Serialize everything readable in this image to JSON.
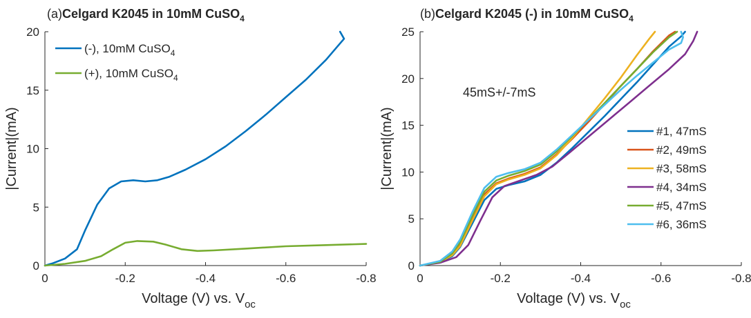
{
  "chart_data": [
    {
      "type": "line",
      "title_prefix": "(a)",
      "title": "Celgard K2045 in 10mM CuSO",
      "title_sub": "4",
      "xlabel": "Voltage (V) vs. V",
      "xlabel_sub": "oc",
      "ylabel": "|Current|(mA)",
      "xlim": [
        0,
        -0.8
      ],
      "ylim": [
        0,
        20
      ],
      "xticks": [
        0,
        -0.2,
        -0.4,
        -0.6,
        -0.8
      ],
      "xtick_labels": [
        "0",
        "-0.2",
        "-0.4",
        "-0.6",
        "-0.8"
      ],
      "yticks": [
        0,
        5,
        10,
        15,
        20
      ],
      "ytick_labels": [
        "0",
        "5",
        "10",
        "15",
        "20"
      ],
      "grid": false,
      "legend_position": "top-left",
      "series": [
        {
          "name": "(-), 10mM CuSO",
          "name_sub": "4",
          "color": "#0072BD",
          "x": [
            0,
            -0.02,
            -0.05,
            -0.08,
            -0.1,
            -0.13,
            -0.16,
            -0.19,
            -0.22,
            -0.25,
            -0.28,
            -0.31,
            -0.35,
            -0.4,
            -0.45,
            -0.5,
            -0.55,
            -0.6,
            -0.65,
            -0.7,
            -0.73,
            -0.745,
            -0.735
          ],
          "y": [
            0,
            0.2,
            0.6,
            1.4,
            3.0,
            5.2,
            6.6,
            7.2,
            7.3,
            7.2,
            7.3,
            7.6,
            8.2,
            9.1,
            10.2,
            11.5,
            12.9,
            14.4,
            15.9,
            17.6,
            18.8,
            19.4,
            20.0
          ]
        },
        {
          "name": "(+), 10mM CuSO",
          "name_sub": "4",
          "color": "#77AC30",
          "x": [
            0,
            -0.05,
            -0.1,
            -0.14,
            -0.17,
            -0.2,
            -0.23,
            -0.27,
            -0.3,
            -0.34,
            -0.38,
            -0.42,
            -0.5,
            -0.6,
            -0.7,
            -0.8
          ],
          "y": [
            0,
            0.15,
            0.4,
            0.8,
            1.4,
            1.95,
            2.1,
            2.05,
            1.8,
            1.4,
            1.25,
            1.3,
            1.45,
            1.65,
            1.75,
            1.85
          ]
        }
      ]
    },
    {
      "type": "line",
      "title_prefix": "(b)",
      "title": "Celgard K2045 (-) in 10mM CuSO",
      "title_sub": "4",
      "xlabel": "Voltage (V) vs. V",
      "xlabel_sub": "oc",
      "ylabel": "|Current|(mA)",
      "xlim": [
        0,
        -0.8
      ],
      "ylim": [
        0,
        25
      ],
      "xticks": [
        0,
        -0.2,
        -0.4,
        -0.6,
        -0.8
      ],
      "xtick_labels": [
        "0",
        "-0.2",
        "-0.4",
        "-0.6",
        "-0.8"
      ],
      "yticks": [
        0,
        5,
        10,
        15,
        20,
        25
      ],
      "ytick_labels": [
        "0",
        "5",
        "10",
        "15",
        "20",
        "25"
      ],
      "grid": false,
      "legend_position": "right",
      "annotation": "45mS+/-7mS",
      "series": [
        {
          "name": "#1, 47mS",
          "color": "#0072BD",
          "x": [
            0,
            -0.05,
            -0.08,
            -0.1,
            -0.13,
            -0.16,
            -0.19,
            -0.22,
            -0.26,
            -0.3,
            -0.34,
            -0.38,
            -0.42,
            -0.46,
            -0.5,
            -0.54,
            -0.58,
            -0.62,
            -0.65,
            -0.66
          ],
          "y": [
            0,
            0.4,
            1.0,
            2.0,
            4.5,
            7.0,
            8.2,
            8.6,
            9.0,
            9.7,
            11.0,
            12.6,
            14.3,
            16.0,
            17.8,
            19.6,
            21.5,
            23.4,
            24.5,
            25.0
          ]
        },
        {
          "name": "#2, 49mS",
          "color": "#D95319",
          "x": [
            0,
            -0.05,
            -0.08,
            -0.1,
            -0.13,
            -0.16,
            -0.19,
            -0.22,
            -0.26,
            -0.3,
            -0.34,
            -0.38,
            -0.42,
            -0.46,
            -0.5,
            -0.54,
            -0.58,
            -0.62,
            -0.635
          ],
          "y": [
            0,
            0.4,
            1.2,
            2.3,
            5.0,
            7.6,
            8.8,
            9.3,
            9.8,
            10.5,
            11.9,
            13.6,
            15.4,
            17.3,
            19.2,
            21.0,
            22.9,
            24.6,
            25.0
          ]
        },
        {
          "name": "#3, 58mS",
          "color": "#EDB120",
          "x": [
            0,
            -0.05,
            -0.08,
            -0.1,
            -0.13,
            -0.16,
            -0.19,
            -0.22,
            -0.26,
            -0.3,
            -0.34,
            -0.38,
            -0.42,
            -0.46,
            -0.5,
            -0.54,
            -0.57,
            -0.585
          ],
          "y": [
            0,
            0.4,
            1.1,
            2.1,
            4.8,
            7.4,
            8.7,
            9.2,
            9.7,
            10.4,
            11.8,
            13.7,
            15.8,
            17.9,
            20.1,
            22.5,
            24.2,
            25.0
          ]
        },
        {
          "name": "#4, 34mS",
          "color": "#7E2F8E",
          "x": [
            0,
            -0.05,
            -0.09,
            -0.12,
            -0.15,
            -0.18,
            -0.21,
            -0.25,
            -0.29,
            -0.33,
            -0.37,
            -0.42,
            -0.47,
            -0.52,
            -0.57,
            -0.62,
            -0.66,
            -0.68,
            -0.69
          ],
          "y": [
            0,
            0.3,
            0.9,
            2.2,
            4.8,
            7.3,
            8.5,
            9.1,
            9.7,
            10.6,
            12.0,
            13.8,
            15.6,
            17.4,
            19.2,
            21.0,
            22.6,
            24.0,
            25.0
          ]
        },
        {
          "name": "#5, 47mS",
          "color": "#77AC30",
          "x": [
            0,
            -0.05,
            -0.08,
            -0.1,
            -0.13,
            -0.16,
            -0.19,
            -0.22,
            -0.26,
            -0.3,
            -0.34,
            -0.38,
            -0.42,
            -0.46,
            -0.5,
            -0.54,
            -0.58,
            -0.62,
            -0.64
          ],
          "y": [
            0,
            0.4,
            1.3,
            2.5,
            5.3,
            7.9,
            9.1,
            9.6,
            10.1,
            10.8,
            12.2,
            13.9,
            15.6,
            17.4,
            19.2,
            21.0,
            22.8,
            24.4,
            25.0
          ]
        },
        {
          "name": "#6, 36mS",
          "color": "#4DBEEE",
          "x": [
            0,
            -0.05,
            -0.08,
            -0.1,
            -0.13,
            -0.16,
            -0.19,
            -0.22,
            -0.26,
            -0.3,
            -0.34,
            -0.38,
            -0.42,
            -0.46,
            -0.5,
            -0.54,
            -0.58,
            -0.62,
            -0.65,
            -0.655,
            -0.65
          ],
          "y": [
            0,
            0.5,
            1.5,
            2.8,
            5.7,
            8.3,
            9.5,
            9.9,
            10.3,
            11.0,
            12.4,
            14.0,
            15.6,
            17.2,
            18.8,
            20.3,
            21.7,
            23.1,
            23.8,
            24.4,
            25.0
          ]
        }
      ]
    }
  ]
}
